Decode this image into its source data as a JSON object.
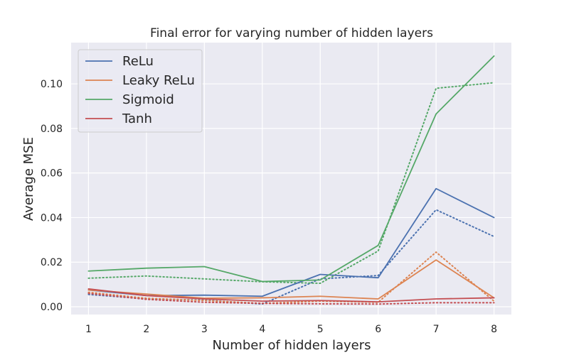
{
  "chart_data": {
    "type": "line",
    "title": "Final error for varying number of hidden layers",
    "xlabel": "Number of hidden layers",
    "ylabel": "Average MSE",
    "x": [
      1,
      2,
      3,
      4,
      5,
      6,
      7,
      8
    ],
    "xlim": [
      0.7,
      8.3
    ],
    "ylim": [
      -0.0035,
      0.1185
    ],
    "xticks": [
      "1",
      "2",
      "3",
      "4",
      "5",
      "6",
      "7",
      "8"
    ],
    "yticks": [
      0.0,
      0.02,
      0.04,
      0.06,
      0.08,
      0.1
    ],
    "ytick_labels": [
      "0.00",
      "0.02",
      "0.04",
      "0.06",
      "0.08",
      "0.10"
    ],
    "grid": true,
    "legend_position": "top-left",
    "series": [
      {
        "name": "ReLu",
        "color": "#4c72b0",
        "style": "solid",
        "values": [
          0.0075,
          0.005,
          0.0052,
          0.0047,
          0.0145,
          0.013,
          0.053,
          0.04
        ]
      },
      {
        "name": "Leaky ReLu",
        "color": "#dd8452",
        "style": "solid",
        "values": [
          0.0075,
          0.0057,
          0.0038,
          0.004,
          0.0047,
          0.0035,
          0.021,
          0.004
        ]
      },
      {
        "name": "Sigmoid",
        "color": "#55a868",
        "style": "solid",
        "values": [
          0.016,
          0.0173,
          0.018,
          0.0113,
          0.012,
          0.0275,
          0.0865,
          0.1125
        ]
      },
      {
        "name": "Tanh",
        "color": "#c44e52",
        "style": "solid",
        "values": [
          0.008,
          0.005,
          0.0035,
          0.0025,
          0.0028,
          0.0022,
          0.0035,
          0.004
        ]
      },
      {
        "name": "",
        "color": "#4c72b0",
        "style": "dotted",
        "values": [
          0.0055,
          0.0035,
          0.003,
          0.0012,
          0.0125,
          0.014,
          0.0435,
          0.0315
        ]
      },
      {
        "name": "",
        "color": "#dd8452",
        "style": "dotted",
        "values": [
          0.0065,
          0.0038,
          0.0028,
          0.0015,
          0.0025,
          0.002,
          0.0245,
          0.0025
        ]
      },
      {
        "name": "",
        "color": "#55a868",
        "style": "dotted",
        "values": [
          0.0128,
          0.0138,
          0.0125,
          0.0112,
          0.0105,
          0.025,
          0.098,
          0.1005
        ]
      },
      {
        "name": "",
        "color": "#c44e52",
        "style": "dotted",
        "values": [
          0.006,
          0.0033,
          0.002,
          0.0015,
          0.0013,
          0.0012,
          0.0018,
          0.0018
        ]
      }
    ]
  }
}
